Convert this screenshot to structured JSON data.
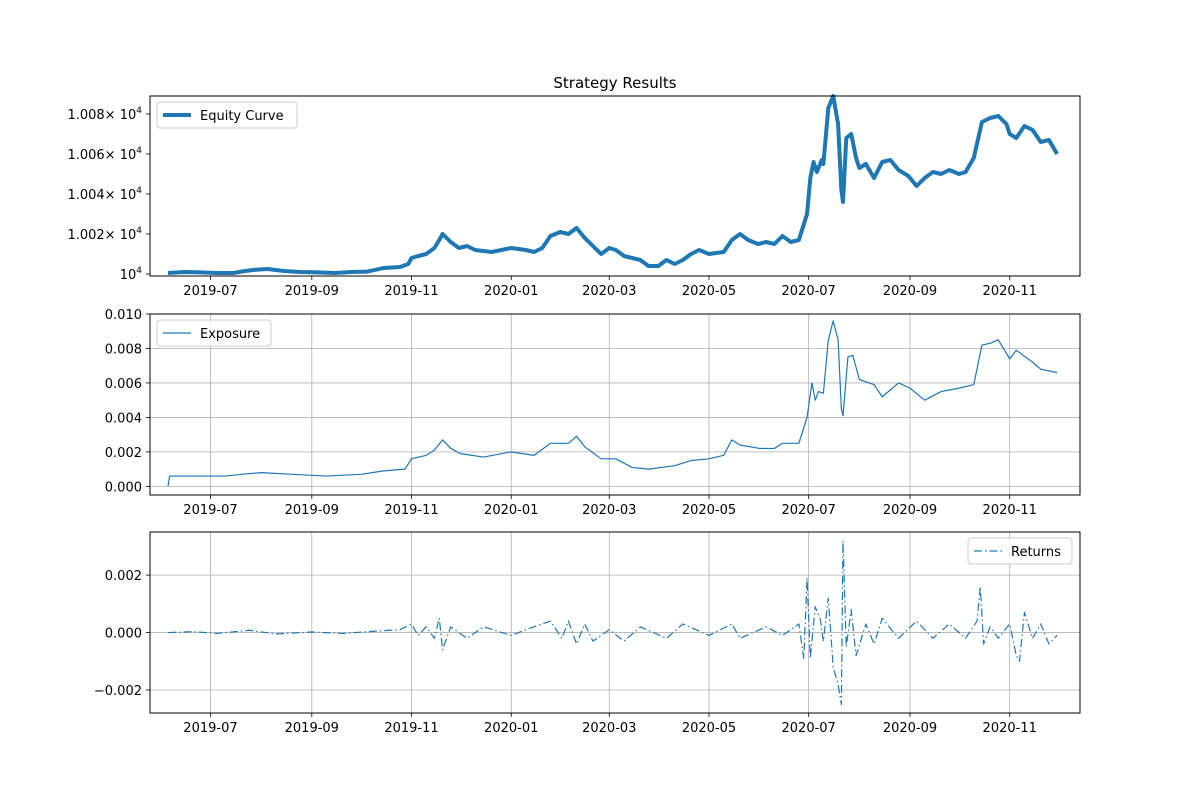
{
  "chart_data": {
    "title": "Strategy Results",
    "color": "#1f77b4",
    "x_ticks": [
      "2019-07",
      "2019-09",
      "2019-11",
      "2020-01",
      "2020-03",
      "2020-05",
      "2020-07",
      "2020-09",
      "2020-11"
    ],
    "x_range": [
      "2019-05-25",
      "2020-12-14"
    ],
    "panels": [
      {
        "type": "line",
        "legend": "Equity Curve",
        "legend_loc": "upper left",
        "line_style": "solid",
        "grid": false,
        "ylim": [
          9999.0,
          10089.0
        ],
        "y_ticks": [
          {
            "value": 10000,
            "base": "10",
            "exp": "4",
            "mantissa": ""
          },
          {
            "value": 10020,
            "base": "10",
            "exp": "4",
            "mantissa": "1.002×"
          },
          {
            "value": 10040,
            "base": "10",
            "exp": "4",
            "mantissa": "1.004×"
          },
          {
            "value": 10060,
            "base": "10",
            "exp": "4",
            "mantissa": "1.006×"
          },
          {
            "value": 10080,
            "base": "10",
            "exp": "4",
            "mantissa": "1.008×"
          }
        ],
        "points": [
          [
            "2019-06-05",
            10000.5
          ],
          [
            "2019-06-15",
            10001.0
          ],
          [
            "2019-06-25",
            10000.8
          ],
          [
            "2019-07-05",
            10000.5
          ],
          [
            "2019-07-15",
            10000.5
          ],
          [
            "2019-07-22",
            10001.5
          ],
          [
            "2019-07-27",
            10002.0
          ],
          [
            "2019-08-05",
            10002.5
          ],
          [
            "2019-08-15",
            10001.5
          ],
          [
            "2019-08-25",
            10001.0
          ],
          [
            "2019-09-05",
            10000.8
          ],
          [
            "2019-09-15",
            10000.5
          ],
          [
            "2019-09-25",
            10001.0
          ],
          [
            "2019-10-05",
            10001.2
          ],
          [
            "2019-10-15",
            10003.0
          ],
          [
            "2019-10-25",
            10003.5
          ],
          [
            "2019-10-30",
            10005.0
          ],
          [
            "2019-11-01",
            10008.0
          ],
          [
            "2019-11-05",
            10009.0
          ],
          [
            "2019-11-10",
            10010.0
          ],
          [
            "2019-11-15",
            10013.0
          ],
          [
            "2019-11-18",
            10017.0
          ],
          [
            "2019-11-20",
            10020.0
          ],
          [
            "2019-11-25",
            10016.0
          ],
          [
            "2019-11-30",
            10013.0
          ],
          [
            "2019-12-05",
            10014.0
          ],
          [
            "2019-12-10",
            10012.0
          ],
          [
            "2019-12-20",
            10011.0
          ],
          [
            "2020-01-01",
            10013.0
          ],
          [
            "2020-01-10",
            10012.0
          ],
          [
            "2020-01-15",
            10011.0
          ],
          [
            "2020-01-20",
            10013.0
          ],
          [
            "2020-01-25",
            10019.0
          ],
          [
            "2020-01-31",
            10021.0
          ],
          [
            "2020-02-05",
            10020.0
          ],
          [
            "2020-02-10",
            10023.0
          ],
          [
            "2020-02-15",
            10018.0
          ],
          [
            "2020-02-20",
            10014.0
          ],
          [
            "2020-02-25",
            10010.0
          ],
          [
            "2020-03-01",
            10013.0
          ],
          [
            "2020-03-05",
            10012.0
          ],
          [
            "2020-03-10",
            10009.0
          ],
          [
            "2020-03-15",
            10008.0
          ],
          [
            "2020-03-20",
            10007.0
          ],
          [
            "2020-03-25",
            10004.0
          ],
          [
            "2020-03-31",
            10004.0
          ],
          [
            "2020-04-05",
            10007.0
          ],
          [
            "2020-04-10",
            10005.0
          ],
          [
            "2020-04-15",
            10007.0
          ],
          [
            "2020-04-20",
            10010.0
          ],
          [
            "2020-04-25",
            10012.0
          ],
          [
            "2020-05-01",
            10010.0
          ],
          [
            "2020-05-10",
            10011.0
          ],
          [
            "2020-05-15",
            10017.0
          ],
          [
            "2020-05-20",
            10020.0
          ],
          [
            "2020-05-25",
            10017.0
          ],
          [
            "2020-05-31",
            10015.0
          ],
          [
            "2020-06-05",
            10016.0
          ],
          [
            "2020-06-10",
            10015.0
          ],
          [
            "2020-06-15",
            10019.0
          ],
          [
            "2020-06-20",
            10016.0
          ],
          [
            "2020-06-25",
            10017.0
          ],
          [
            "2020-06-30",
            10030.0
          ],
          [
            "2020-07-02",
            10048.0
          ],
          [
            "2020-07-04",
            10056.0
          ],
          [
            "2020-07-06",
            10051.0
          ],
          [
            "2020-07-09",
            10057.0
          ],
          [
            "2020-07-10",
            10055.0
          ],
          [
            "2020-07-13",
            10083.0
          ],
          [
            "2020-07-16",
            10089.0
          ],
          [
            "2020-07-19",
            10075.0
          ],
          [
            "2020-07-21",
            10042.0
          ],
          [
            "2020-07-22",
            10036.0
          ],
          [
            "2020-07-24",
            10068.0
          ],
          [
            "2020-07-27",
            10070.0
          ],
          [
            "2020-07-30",
            10058.0
          ],
          [
            "2020-08-01",
            10053.0
          ],
          [
            "2020-08-05",
            10055.0
          ],
          [
            "2020-08-10",
            10048.0
          ],
          [
            "2020-08-15",
            10056.0
          ],
          [
            "2020-08-20",
            10057.0
          ],
          [
            "2020-08-25",
            10052.0
          ],
          [
            "2020-08-31",
            10049.0
          ],
          [
            "2020-09-05",
            10044.0
          ],
          [
            "2020-09-10",
            10048.0
          ],
          [
            "2020-09-15",
            10051.0
          ],
          [
            "2020-09-20",
            10050.0
          ],
          [
            "2020-09-25",
            10052.0
          ],
          [
            "2020-10-01",
            10050.0
          ],
          [
            "2020-10-05",
            10051.0
          ],
          [
            "2020-10-10",
            10058.0
          ],
          [
            "2020-10-15",
            10076.0
          ],
          [
            "2020-10-20",
            10078.0
          ],
          [
            "2020-10-25",
            10079.0
          ],
          [
            "2020-10-30",
            10075.0
          ],
          [
            "2020-11-01",
            10070.0
          ],
          [
            "2020-11-05",
            10068.0
          ],
          [
            "2020-11-10",
            10074.0
          ],
          [
            "2020-11-15",
            10072.0
          ],
          [
            "2020-11-20",
            10066.0
          ],
          [
            "2020-11-25",
            10067.0
          ],
          [
            "2020-11-30",
            10060.0
          ]
        ]
      },
      {
        "type": "line",
        "legend": "Exposure",
        "legend_loc": "upper left",
        "line_style": "solid",
        "grid": true,
        "ylim": [
          -0.0005,
          0.01
        ],
        "y_ticks": [
          {
            "value": 0.0,
            "label": "0.000"
          },
          {
            "value": 0.002,
            "label": "0.002"
          },
          {
            "value": 0.004,
            "label": "0.004"
          },
          {
            "value": 0.006,
            "label": "0.006"
          },
          {
            "value": 0.008,
            "label": "0.008"
          },
          {
            "value": 0.01,
            "label": "0.010"
          }
        ],
        "points": [
          [
            "2019-06-05",
            0.0
          ],
          [
            "2019-06-06",
            0.0006
          ],
          [
            "2019-06-20",
            0.0006
          ],
          [
            "2019-07-10",
            0.0006
          ],
          [
            "2019-07-20",
            0.0007
          ],
          [
            "2019-08-01",
            0.0008
          ],
          [
            "2019-08-20",
            0.0007
          ],
          [
            "2019-09-10",
            0.0006
          ],
          [
            "2019-10-01",
            0.0007
          ],
          [
            "2019-10-15",
            0.0009
          ],
          [
            "2019-10-28",
            0.001
          ],
          [
            "2019-11-01",
            0.0016
          ],
          [
            "2019-11-10",
            0.0018
          ],
          [
            "2019-11-15",
            0.0021
          ],
          [
            "2019-11-20",
            0.0027
          ],
          [
            "2019-11-25",
            0.0022
          ],
          [
            "2019-12-01",
            0.0019
          ],
          [
            "2019-12-15",
            0.0017
          ],
          [
            "2020-01-01",
            0.002
          ],
          [
            "2020-01-15",
            0.0018
          ],
          [
            "2020-01-25",
            0.0025
          ],
          [
            "2020-02-05",
            0.0025
          ],
          [
            "2020-02-10",
            0.0029
          ],
          [
            "2020-02-15",
            0.0023
          ],
          [
            "2020-02-25",
            0.0016
          ],
          [
            "2020-03-05",
            0.0016
          ],
          [
            "2020-03-15",
            0.0011
          ],
          [
            "2020-03-25",
            0.001
          ],
          [
            "2020-04-10",
            0.0012
          ],
          [
            "2020-04-20",
            0.0015
          ],
          [
            "2020-05-01",
            0.0016
          ],
          [
            "2020-05-10",
            0.0018
          ],
          [
            "2020-05-15",
            0.0027
          ],
          [
            "2020-05-20",
            0.0024
          ],
          [
            "2020-06-01",
            0.0022
          ],
          [
            "2020-06-10",
            0.0022
          ],
          [
            "2020-06-15",
            0.0025
          ],
          [
            "2020-06-25",
            0.0025
          ],
          [
            "2020-06-30",
            0.004
          ],
          [
            "2020-07-03",
            0.006
          ],
          [
            "2020-07-05",
            0.005
          ],
          [
            "2020-07-07",
            0.0055
          ],
          [
            "2020-07-10",
            0.0054
          ],
          [
            "2020-07-13",
            0.0085
          ],
          [
            "2020-07-16",
            0.0096
          ],
          [
            "2020-07-19",
            0.0085
          ],
          [
            "2020-07-21",
            0.0045
          ],
          [
            "2020-07-22",
            0.0041
          ],
          [
            "2020-07-25",
            0.0075
          ],
          [
            "2020-07-28",
            0.0076
          ],
          [
            "2020-08-01",
            0.0062
          ],
          [
            "2020-08-10",
            0.0059
          ],
          [
            "2020-08-15",
            0.0052
          ],
          [
            "2020-08-25",
            0.006
          ],
          [
            "2020-09-01",
            0.0057
          ],
          [
            "2020-09-10",
            0.005
          ],
          [
            "2020-09-20",
            0.0055
          ],
          [
            "2020-10-01",
            0.0057
          ],
          [
            "2020-10-10",
            0.0059
          ],
          [
            "2020-10-15",
            0.0082
          ],
          [
            "2020-10-20",
            0.0083
          ],
          [
            "2020-10-25",
            0.0085
          ],
          [
            "2020-11-01",
            0.0074
          ],
          [
            "2020-11-05",
            0.0079
          ],
          [
            "2020-11-15",
            0.0072
          ],
          [
            "2020-11-20",
            0.0068
          ],
          [
            "2020-11-30",
            0.0066
          ]
        ]
      },
      {
        "type": "line",
        "legend": "Returns",
        "legend_loc": "upper right",
        "line_style": "dashdot",
        "grid": true,
        "ylim": [
          -0.0028,
          0.0035
        ],
        "y_ticks": [
          {
            "value": -0.002,
            "label": "−0.002"
          },
          {
            "value": 0.0,
            "label": "0.000"
          },
          {
            "value": 0.002,
            "label": "0.002"
          }
        ],
        "points": [
          [
            "2019-06-05",
            0.0
          ],
          [
            "2019-06-20",
            3e-05
          ],
          [
            "2019-07-05",
            -3e-05
          ],
          [
            "2019-07-25",
            8e-05
          ],
          [
            "2019-08-10",
            -5e-05
          ],
          [
            "2019-09-01",
            2e-05
          ],
          [
            "2019-09-20",
            -3e-05
          ],
          [
            "2019-10-10",
            5e-05
          ],
          [
            "2019-10-25",
            0.0001
          ],
          [
            "2019-11-01",
            0.0003
          ],
          [
            "2019-11-05",
            -0.0001
          ],
          [
            "2019-11-10",
            0.0002
          ],
          [
            "2019-11-15",
            -0.0002
          ],
          [
            "2019-11-18",
            0.0005
          ],
          [
            "2019-11-20",
            -0.0006
          ],
          [
            "2019-11-25",
            0.0002
          ],
          [
            "2019-12-05",
            -0.0002
          ],
          [
            "2019-12-15",
            0.0002
          ],
          [
            "2020-01-01",
            -0.0001
          ],
          [
            "2020-01-10",
            0.0001
          ],
          [
            "2020-01-25",
            0.0004
          ],
          [
            "2020-02-01",
            -0.0002
          ],
          [
            "2020-02-05",
            0.0004
          ],
          [
            "2020-02-10",
            -0.0004
          ],
          [
            "2020-02-15",
            0.0003
          ],
          [
            "2020-02-20",
            -0.0003
          ],
          [
            "2020-03-01",
            0.0001
          ],
          [
            "2020-03-10",
            -0.0003
          ],
          [
            "2020-03-20",
            0.0002
          ],
          [
            "2020-04-05",
            -0.0002
          ],
          [
            "2020-04-15",
            0.0003
          ],
          [
            "2020-05-01",
            -0.0001
          ],
          [
            "2020-05-15",
            0.0003
          ],
          [
            "2020-05-20",
            -0.0002
          ],
          [
            "2020-06-05",
            0.0002
          ],
          [
            "2020-06-15",
            -0.0001
          ],
          [
            "2020-06-25",
            0.0003
          ],
          [
            "2020-06-28",
            -0.0009
          ],
          [
            "2020-06-30",
            0.0019
          ],
          [
            "2020-07-02",
            -0.0009
          ],
          [
            "2020-07-05",
            0.0009
          ],
          [
            "2020-07-08",
            0.0005
          ],
          [
            "2020-07-10",
            -0.0003
          ],
          [
            "2020-07-13",
            0.0012
          ],
          [
            "2020-07-16",
            -0.0012
          ],
          [
            "2020-07-19",
            -0.0018
          ],
          [
            "2020-07-21",
            -0.0025
          ],
          [
            "2020-07-22",
            0.0032
          ],
          [
            "2020-07-24",
            -0.0005
          ],
          [
            "2020-07-27",
            0.0008
          ],
          [
            "2020-07-30",
            -0.0008
          ],
          [
            "2020-08-05",
            0.0003
          ],
          [
            "2020-08-10",
            -0.0004
          ],
          [
            "2020-08-15",
            0.0005
          ],
          [
            "2020-08-25",
            -0.0002
          ],
          [
            "2020-09-05",
            0.0004
          ],
          [
            "2020-09-15",
            -0.0002
          ],
          [
            "2020-09-25",
            0.0003
          ],
          [
            "2020-10-05",
            -0.0002
          ],
          [
            "2020-10-12",
            0.0004
          ],
          [
            "2020-10-14",
            0.0016
          ],
          [
            "2020-10-16",
            -0.0004
          ],
          [
            "2020-10-20",
            0.0002
          ],
          [
            "2020-10-25",
            -0.0002
          ],
          [
            "2020-11-01",
            0.0003
          ],
          [
            "2020-11-05",
            -0.0008
          ],
          [
            "2020-11-07",
            -0.001
          ],
          [
            "2020-11-10",
            0.0007
          ],
          [
            "2020-11-15",
            -0.0002
          ],
          [
            "2020-11-20",
            0.0003
          ],
          [
            "2020-11-25",
            -0.0004
          ],
          [
            "2020-11-30",
            -0.0001
          ]
        ]
      }
    ]
  }
}
